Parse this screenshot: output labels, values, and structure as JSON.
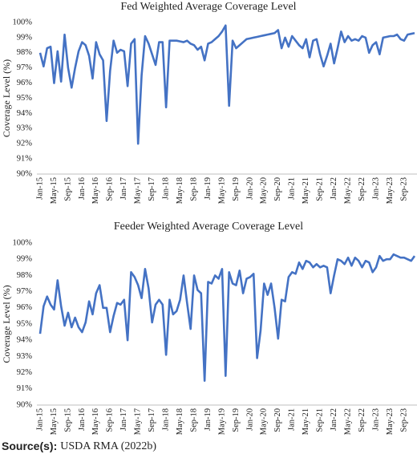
{
  "chart_data": [
    {
      "type": "line",
      "title": "Fed Weighted Average Coverage Level",
      "y_label": "Coverage Level (%)",
      "color": "#4472c4",
      "categories": [
        "Jan-15",
        null,
        null,
        null,
        "May-15",
        null,
        null,
        null,
        "Sep-15",
        null,
        null,
        null,
        "Jan-16",
        null,
        null,
        null,
        "May-16",
        null,
        null,
        null,
        "Sep-16",
        null,
        null,
        null,
        "Jan-17",
        null,
        null,
        null,
        "May-17",
        null,
        null,
        null,
        "Sep-17",
        null,
        null,
        null,
        "Jan-18",
        null,
        null,
        null,
        "May-18",
        null,
        null,
        null,
        "Sep-18",
        null,
        null,
        null,
        "Jan-19",
        null,
        null,
        null,
        "May-19",
        null,
        null,
        null,
        "Sep-19",
        null,
        null,
        null,
        "Jan-20",
        null,
        null,
        null,
        "May-20",
        null,
        null,
        null,
        "Sep-20",
        null,
        null,
        null,
        "Jan-21",
        null,
        null,
        null,
        "May-21",
        null,
        null,
        null,
        "Sep-21",
        null,
        null,
        null,
        "Jan-22",
        null,
        null,
        null,
        "May-22",
        null,
        null,
        null,
        "Sep-22",
        null,
        null,
        null,
        "Jan-23",
        null,
        null,
        null,
        "May-23",
        null,
        null,
        null,
        "Sep-23",
        null,
        null,
        null
      ],
      "values": [
        98.0,
        97.1,
        98.3,
        98.4,
        96.0,
        98.1,
        96.1,
        99.2,
        97.0,
        95.7,
        97.0,
        98.1,
        98.7,
        98.5,
        97.8,
        96.3,
        98.7,
        97.9,
        97.5,
        93.5,
        96.8,
        98.8,
        98.0,
        98.2,
        98.1,
        95.8,
        98.6,
        98.9,
        92.0,
        96.5,
        99.1,
        98.6,
        97.9,
        97.2,
        98.7,
        98.7,
        94.4,
        98.8,
        98.8,
        98.8,
        98.75,
        98.7,
        98.8,
        98.6,
        98.5,
        98.2,
        98.4,
        97.5,
        98.6,
        98.7,
        98.9,
        99.1,
        99.4,
        99.8,
        94.5,
        98.8,
        98.3,
        98.5,
        98.7,
        98.9,
        98.95,
        99.0,
        99.05,
        99.1,
        99.15,
        99.2,
        99.25,
        99.3,
        99.5,
        98.3,
        99.0,
        98.4,
        99.1,
        98.8,
        98.5,
        98.3,
        98.9,
        97.7,
        98.8,
        98.9,
        97.9,
        97.1,
        97.8,
        98.6,
        97.3,
        98.3,
        99.4,
        98.7,
        99.1,
        98.8,
        98.9,
        98.8,
        99.1,
        99.0,
        98.0,
        98.5,
        98.7,
        97.9,
        99.0,
        99.05,
        99.1,
        99.1,
        99.2,
        98.9,
        98.8,
        99.2,
        99.25,
        99.3
      ],
      "ylim": [
        90,
        100
      ],
      "yticks": [
        {
          "value": 90,
          "label": "90%"
        },
        {
          "value": 91,
          "label": "91%"
        },
        {
          "value": 92,
          "label": "92%"
        },
        {
          "value": 93,
          "label": "93%"
        },
        {
          "value": 94,
          "label": "94%"
        },
        {
          "value": 95,
          "label": "95%"
        },
        {
          "value": 96,
          "label": "96%"
        },
        {
          "value": 97,
          "label": "97%"
        },
        {
          "value": 98,
          "label": "98%"
        },
        {
          "value": 99,
          "label": "99%"
        },
        {
          "value": 100,
          "label": "100%"
        }
      ]
    },
    {
      "type": "line",
      "title": "Feeder Weighted Average Coverage Level",
      "y_label": "Coverage Level (%)",
      "color": "#4472c4",
      "categories": [
        "Jan-15",
        null,
        null,
        null,
        "May-15",
        null,
        null,
        null,
        "Sep-15",
        null,
        null,
        null,
        "Jan-16",
        null,
        null,
        null,
        "May-16",
        null,
        null,
        null,
        "Sep-16",
        null,
        null,
        null,
        "Jan-17",
        null,
        null,
        null,
        "May-17",
        null,
        null,
        null,
        "Sep-17",
        null,
        null,
        null,
        "Jan-18",
        null,
        null,
        null,
        "May-18",
        null,
        null,
        null,
        "Sep-18",
        null,
        null,
        null,
        "Jan-19",
        null,
        null,
        null,
        "May-19",
        null,
        null,
        null,
        "Sep-19",
        null,
        null,
        null,
        "Jan-20",
        null,
        null,
        null,
        "May-20",
        null,
        null,
        null,
        "Sep-20",
        null,
        null,
        null,
        "Jan-21",
        null,
        null,
        null,
        "May-21",
        null,
        null,
        null,
        "Sep-21",
        null,
        null,
        null,
        "Jan-22",
        null,
        null,
        null,
        "May-22",
        null,
        null,
        null,
        "Sep-22",
        null,
        null,
        null,
        "Jan-23",
        null,
        null,
        null,
        "May-23",
        null,
        null,
        null,
        "Sep-23",
        null,
        null,
        null
      ],
      "values": [
        94.4,
        96.1,
        96.7,
        96.2,
        95.9,
        97.7,
        96.1,
        94.9,
        95.7,
        94.8,
        95.4,
        94.8,
        94.5,
        95.1,
        96.4,
        95.6,
        96.9,
        97.4,
        96.0,
        96.0,
        94.5,
        95.5,
        96.3,
        96.2,
        96.5,
        94.0,
        98.2,
        97.9,
        97.4,
        96.6,
        98.4,
        97.2,
        95.1,
        96.2,
        96.5,
        96.2,
        93.1,
        96.5,
        95.6,
        95.8,
        96.5,
        98.0,
        96.3,
        94.7,
        98.0,
        97.1,
        96.9,
        91.5,
        97.6,
        97.5,
        98.0,
        97.8,
        98.4,
        91.8,
        98.2,
        97.5,
        97.4,
        98.3,
        96.9,
        97.8,
        97.9,
        98.1,
        92.9,
        94.6,
        97.5,
        96.8,
        97.5,
        96.0,
        94.1,
        96.5,
        96.4,
        97.9,
        98.2,
        98.1,
        98.8,
        98.4,
        98.9,
        98.8,
        98.5,
        98.7,
        98.5,
        98.6,
        98.5,
        96.9,
        98.0,
        99.0,
        98.9,
        98.7,
        99.1,
        98.6,
        99.1,
        98.9,
        98.5,
        98.9,
        98.8,
        98.2,
        98.5,
        99.2,
        98.9,
        99.0,
        99.0,
        99.3,
        99.2,
        99.1,
        99.1,
        99.0,
        98.9,
        99.2
      ],
      "ylim": [
        90,
        100
      ],
      "yticks": [
        {
          "value": 90,
          "label": "90%"
        },
        {
          "value": 91,
          "label": "91%"
        },
        {
          "value": 92,
          "label": "92%"
        },
        {
          "value": 93,
          "label": "93%"
        },
        {
          "value": 94,
          "label": "94%"
        },
        {
          "value": 95,
          "label": "95%"
        },
        {
          "value": 96,
          "label": "96%"
        },
        {
          "value": 97,
          "label": "97%"
        },
        {
          "value": 98,
          "label": "98%"
        },
        {
          "value": 99,
          "label": "99%"
        },
        {
          "value": 100,
          "label": "100%"
        }
      ]
    }
  ],
  "source": {
    "label": "Source(s):",
    "text": "USDA RMA (2022b)"
  }
}
